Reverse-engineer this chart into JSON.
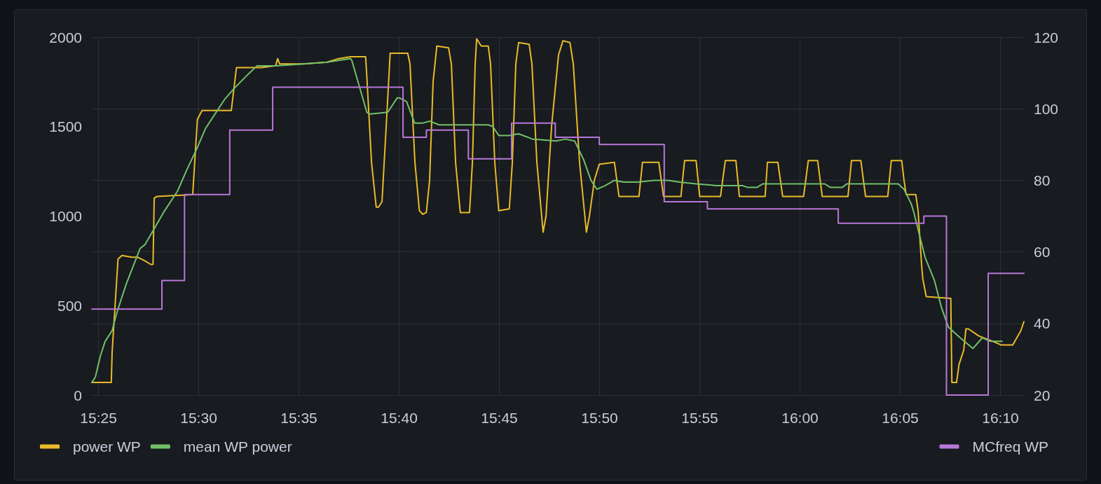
{
  "chart_data": {
    "type": "line",
    "xlim": [
      15.4111,
      16.1862
    ],
    "xticks": [
      {
        "value": 15.41667,
        "label": "15:25"
      },
      {
        "value": 15.5,
        "label": "15:30"
      },
      {
        "value": 15.58333,
        "label": "15:35"
      },
      {
        "value": 15.66667,
        "label": "15:40"
      },
      {
        "value": 15.75,
        "label": "15:45"
      },
      {
        "value": 15.83333,
        "label": "15:50"
      },
      {
        "value": 15.91667,
        "label": "15:55"
      },
      {
        "value": 16,
        "label": "16:00"
      },
      {
        "value": 16.08333,
        "label": "16:05"
      },
      {
        "value": 16.16667,
        "label": "16:10"
      }
    ],
    "ylim": [
      0,
      2000
    ],
    "yticks": [
      0,
      500,
      1000,
      1500,
      2000
    ],
    "y2lim": [
      20,
      120
    ],
    "y2ticks": [
      20,
      40,
      60,
      80,
      100,
      120
    ],
    "grid": true,
    "legend": "bottom",
    "marker": "none",
    "line_style": "solid",
    "series": [
      {
        "name": "power WP",
        "color": "#e8bb2a",
        "x": [
          15.4111,
          15.4273,
          15.428,
          15.4329,
          15.4362,
          15.4445,
          15.4494,
          15.4552,
          15.4601,
          15.462,
          15.463,
          15.4653,
          15.495,
          15.4989,
          15.5028,
          15.5271,
          15.5314,
          15.5523,
          15.564,
          15.5656,
          15.5673,
          15.5873,
          15.6068,
          15.6164,
          15.6262,
          15.6388,
          15.6398,
          15.6437,
          15.6476,
          15.6495,
          15.6524,
          15.6559,
          15.6592,
          15.6738,
          15.6757,
          15.6798,
          15.6835,
          15.6864,
          15.6893,
          15.692,
          15.6949,
          15.698,
          15.7078,
          15.7101,
          15.7136,
          15.7175,
          15.7252,
          15.7276,
          15.7299,
          15.7311,
          15.735,
          15.7408,
          15.7427,
          15.7462,
          15.7495,
          15.7583,
          15.7608,
          15.7637,
          15.766,
          15.7748,
          15.7771,
          15.7812,
          15.7864,
          15.7888,
          15.7934,
          15.7992,
          15.8029,
          15.8087,
          15.8115,
          15.8167,
          15.8224,
          15.8249,
          15.829,
          15.8331,
          15.8457,
          15.8495,
          15.8661,
          15.869,
          15.8826,
          15.8865,
          15.901,
          15.904,
          15.9136,
          15.9166,
          15.9339,
          15.9379,
          15.9467,
          15.9496,
          15.971,
          15.9729,
          15.9816,
          15.9856,
          16.003,
          16.0069,
          16.0147,
          16.0185,
          16.0399,
          16.0428,
          16.0506,
          16.0545,
          16.073,
          16.0759,
          16.0846,
          16.0865,
          16.0883,
          16.0963,
          16.0982,
          16.1011,
          16.1021,
          16.105,
          16.1254,
          16.1263,
          16.1302,
          16.1322,
          16.1361,
          16.138,
          16.14,
          16.1487,
          16.1604,
          16.1671,
          16.1769,
          16.1837,
          16.1862
        ],
        "values": [
          70,
          70,
          240,
          760,
          780,
          770,
          770,
          750,
          730,
          730,
          1100,
          1110,
          1120,
          1540,
          1590,
          1590,
          1830,
          1830,
          1840,
          1880,
          1850,
          1850,
          1860,
          1880,
          1890,
          1890,
          1780,
          1300,
          1050,
          1050,
          1080,
          1500,
          1910,
          1910,
          1850,
          1300,
          1030,
          1010,
          1020,
          1200,
          1750,
          1950,
          1940,
          1850,
          1300,
          1020,
          1020,
          1300,
          1850,
          1990,
          1950,
          1950,
          1850,
          1300,
          1030,
          1040,
          1300,
          1850,
          1970,
          1960,
          1850,
          1300,
          910,
          1000,
          1500,
          1900,
          1980,
          1970,
          1850,
          1300,
          910,
          1000,
          1200,
          1290,
          1300,
          1110,
          1110,
          1300,
          1300,
          1110,
          1110,
          1310,
          1310,
          1110,
          1110,
          1310,
          1310,
          1110,
          1110,
          1300,
          1300,
          1110,
          1110,
          1310,
          1310,
          1110,
          1110,
          1310,
          1310,
          1110,
          1110,
          1310,
          1310,
          1200,
          1120,
          1120,
          1030,
          730,
          650,
          550,
          540,
          70,
          70,
          170,
          250,
          370,
          370,
          330,
          300,
          280,
          280,
          360,
          410
        ]
      },
      {
        "name": "mean WP power",
        "color": "#73bf69",
        "x": [
          15.4111,
          15.414,
          15.4183,
          15.4222,
          15.428,
          15.4319,
          15.4397,
          15.4455,
          15.4513,
          15.4552,
          15.463,
          15.4707,
          15.4824,
          15.4902,
          15.498,
          15.5057,
          15.5135,
          15.5213,
          15.529,
          15.5407,
          15.5485,
          15.564,
          15.5873,
          15.6068,
          15.6164,
          15.6262,
          15.6273,
          15.6398,
          15.6427,
          15.6572,
          15.665,
          15.667,
          15.6728,
          15.6796,
          15.6864,
          15.6922,
          15.7,
          15.7194,
          15.7408,
          15.7446,
          15.7495,
          15.7583,
          15.766,
          15.7777,
          15.7971,
          15.8049,
          15.8126,
          15.8204,
          15.8262,
          15.8311,
          15.8379,
          15.8457,
          15.8534,
          15.8651,
          15.8787,
          15.8903,
          15.9001,
          15.9136,
          15.9311,
          15.9525,
          15.9564,
          15.9642,
          15.969,
          16.0205,
          16.0254,
          16.0351,
          16.0389,
          16.0817,
          16.0865,
          16.0924,
          16.0943,
          16.104,
          16.1118,
          16.1176,
          16.1234,
          16.1332,
          16.1438,
          16.1516,
          16.1584,
          16.1681
        ],
        "values": [
          70,
          100,
          220,
          300,
          360,
          460,
          620,
          720,
          820,
          840,
          930,
          1020,
          1140,
          1260,
          1370,
          1490,
          1570,
          1650,
          1710,
          1790,
          1840,
          1840,
          1850,
          1860,
          1870,
          1880,
          1870,
          1580,
          1570,
          1580,
          1660,
          1660,
          1640,
          1520,
          1520,
          1530,
          1510,
          1510,
          1510,
          1500,
          1450,
          1450,
          1460,
          1430,
          1420,
          1430,
          1420,
          1310,
          1200,
          1150,
          1170,
          1200,
          1190,
          1190,
          1200,
          1200,
          1190,
          1180,
          1170,
          1170,
          1160,
          1160,
          1180,
          1180,
          1160,
          1160,
          1180,
          1180,
          1150,
          1070,
          1030,
          770,
          640,
          490,
          380,
          320,
          260,
          320,
          300,
          300
        ]
      },
      {
        "name": "MCfreq WP",
        "color": "#b877d9",
        "type": "step",
        "axis": "y2",
        "x": [
          15.4111,
          15.4694,
          15.4882,
          15.5258,
          15.5615,
          15.6699,
          15.6893,
          15.7242,
          15.7602,
          15.7965,
          15.8331,
          15.8871,
          15.923,
          16.0318,
          16.103,
          16.1218,
          16.1565,
          16.1862
        ],
        "values": [
          44,
          52,
          76,
          94,
          106,
          92,
          94,
          86,
          96,
          92,
          90,
          74,
          72,
          68,
          70,
          20,
          54,
          54
        ]
      }
    ]
  }
}
